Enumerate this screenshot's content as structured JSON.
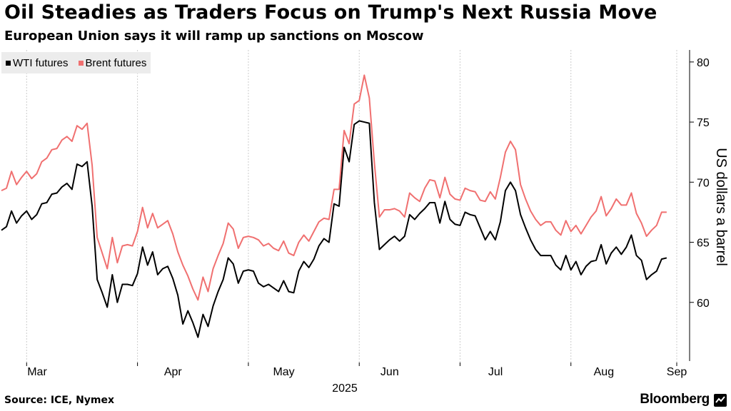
{
  "header": {
    "title": "Oil Steadies as Traders Focus on Trump's Next Russia Move",
    "subtitle": "European Union says it will ramp up sanctions on Moscow"
  },
  "footer": {
    "source": "Source: ICE, Nymex",
    "brand": "Bloomberg"
  },
  "colors": {
    "wti": "#000000",
    "brent": "#f07070",
    "grid": "#cccccc",
    "legend_bg": "#ececec"
  },
  "chart_data": {
    "type": "line",
    "ylabel": "US dollars a barrel",
    "ylim": [
      55,
      81
    ],
    "yticks": [
      60,
      65,
      70,
      75,
      80
    ],
    "y_axis_position": "right",
    "legend_position": "top-left",
    "grid": "vertical dashed",
    "x_month_labels": [
      "Mar",
      "Apr",
      "May",
      "Jun",
      "Jul",
      "Aug",
      "Sep"
    ],
    "x_year_label": "2025",
    "x_range_trading_days": [
      0,
      134
    ],
    "x_month_starts": [
      5,
      27,
      49,
      71,
      91,
      113,
      134
    ],
    "series": [
      {
        "name": "WTI futures",
        "values": [
          66.0,
          66.3,
          67.6,
          66.6,
          67.2,
          67.6,
          66.9,
          67.3,
          68.2,
          68.3,
          69.0,
          69.1,
          69.6,
          69.9,
          69.4,
          71.5,
          71.3,
          71.7,
          68.0,
          61.9,
          60.8,
          59.6,
          62.3,
          60.0,
          61.5,
          61.5,
          61.4,
          62.4,
          64.6,
          63.1,
          64.2,
          62.3,
          62.8,
          63.0,
          62.0,
          60.6,
          58.2,
          59.3,
          58.3,
          57.1,
          59.0,
          58.0,
          59.7,
          60.9,
          61.9,
          63.7,
          63.2,
          61.6,
          62.6,
          62.7,
          62.6,
          61.6,
          61.3,
          61.5,
          61.2,
          60.9,
          61.8,
          60.9,
          60.8,
          62.6,
          63.4,
          62.9,
          63.6,
          64.7,
          65.3,
          65.0,
          68.2,
          68.0,
          72.9,
          71.7,
          74.8,
          75.1,
          75.0,
          74.9,
          68.3,
          64.4,
          64.8,
          65.2,
          65.5,
          65.1,
          65.5,
          67.3,
          66.9,
          67.4,
          67.8,
          68.3,
          68.3,
          66.6,
          68.4,
          66.9,
          66.5,
          66.4,
          67.5,
          67.3,
          67.2,
          66.2,
          65.2,
          65.9,
          65.2,
          66.7,
          69.3,
          70.0,
          69.3,
          67.3,
          66.2,
          65.2,
          64.4,
          63.9,
          63.9,
          63.9,
          63.1,
          62.7,
          63.9,
          62.7,
          63.4,
          62.3,
          63.0,
          63.4,
          63.5,
          64.8,
          63.2,
          64.1,
          64.6,
          64.0,
          64.6,
          65.6,
          63.9,
          63.5,
          61.9,
          62.3,
          62.6,
          63.6,
          63.7
        ]
      },
      {
        "name": "Brent futures",
        "values": [
          69.3,
          69.5,
          70.9,
          69.8,
          70.4,
          70.9,
          70.3,
          70.7,
          71.7,
          72.0,
          72.7,
          72.8,
          73.5,
          73.8,
          73.4,
          74.7,
          74.4,
          74.9,
          71.4,
          65.4,
          64.1,
          62.8,
          65.4,
          63.3,
          64.7,
          64.8,
          64.7,
          65.9,
          67.9,
          66.2,
          67.4,
          66.2,
          66.5,
          66.8,
          65.7,
          64.2,
          63.1,
          62.2,
          61.1,
          60.2,
          62.1,
          60.9,
          62.8,
          63.9,
          64.9,
          66.6,
          66.1,
          64.5,
          65.4,
          65.5,
          65.4,
          65.2,
          64.7,
          64.9,
          64.5,
          64.3,
          65.1,
          64.1,
          63.9,
          65.0,
          65.6,
          65.1,
          65.9,
          66.7,
          67.0,
          66.9,
          69.4,
          69.4,
          74.3,
          73.2,
          76.5,
          76.8,
          78.9,
          77.0,
          71.6,
          67.1,
          67.7,
          67.7,
          67.8,
          67.6,
          67.1,
          69.1,
          68.7,
          68.4,
          69.5,
          70.2,
          70.1,
          68.7,
          70.4,
          69.0,
          68.6,
          68.5,
          69.5,
          69.3,
          69.2,
          68.5,
          68.4,
          69.2,
          68.6,
          70.4,
          72.5,
          73.4,
          72.7,
          69.8,
          68.6,
          67.6,
          66.9,
          66.4,
          66.7,
          66.7,
          66.0,
          65.6,
          66.8,
          65.9,
          66.4,
          65.7,
          66.4,
          67.1,
          67.6,
          68.8,
          67.2,
          67.8,
          68.6,
          68.1,
          68.1,
          69.1,
          67.4,
          66.6,
          65.5,
          66.0,
          66.4,
          67.5,
          67.5
        ]
      }
    ]
  }
}
